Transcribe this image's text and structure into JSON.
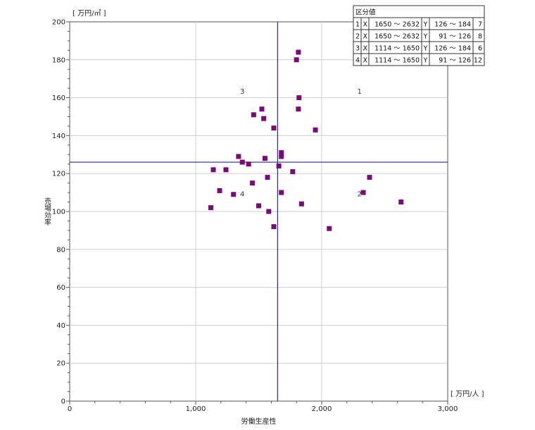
{
  "chart_data": {
    "type": "scatter",
    "xlabel": "労働生産性",
    "ylabel": "売場効率",
    "x_unit": "[ 万円/人 ]",
    "y_unit": "[ 万円/㎡ ]",
    "xlim": [
      0,
      3000
    ],
    "ylim": [
      0,
      200
    ],
    "x_ticks": [
      0,
      1000,
      2000,
      3000
    ],
    "x_tick_labels": [
      "0",
      "1,000",
      "2,000",
      "3,000"
    ],
    "y_ticks": [
      0,
      20,
      40,
      60,
      80,
      100,
      120,
      140,
      160,
      180,
      200
    ],
    "y_tick_labels": [
      "0",
      "20",
      "40",
      "60",
      "80",
      "100",
      "120",
      "140",
      "160",
      "180",
      "200"
    ],
    "grid": "major",
    "divider": {
      "x": 1650,
      "y": 126
    },
    "marker_color": "#7a0a7a",
    "divider_color": "#2222cc",
    "points": [
      [
        1815,
        184
      ],
      [
        1800,
        180
      ],
      [
        1820,
        160
      ],
      [
        1525,
        154
      ],
      [
        1815,
        154
      ],
      [
        1460,
        151
      ],
      [
        1540,
        149
      ],
      [
        1620,
        144
      ],
      [
        1950,
        143
      ],
      [
        1680,
        131
      ],
      [
        1340,
        129
      ],
      [
        1680,
        129
      ],
      [
        1550,
        128
      ],
      [
        1370,
        126
      ],
      [
        1420,
        125
      ],
      [
        1660,
        124
      ],
      [
        1140,
        122
      ],
      [
        1240,
        122
      ],
      [
        1770,
        121
      ],
      [
        2380,
        118
      ],
      [
        1570,
        118
      ],
      [
        1450,
        115
      ],
      [
        1190,
        111
      ],
      [
        1680,
        110
      ],
      [
        2330,
        110
      ],
      [
        1300,
        109
      ],
      [
        2630,
        105
      ],
      [
        1840,
        104
      ],
      [
        1500,
        103
      ],
      [
        1120,
        102
      ],
      [
        1580,
        100
      ],
      [
        1620,
        92
      ],
      [
        2060,
        91
      ]
    ],
    "quadrant_labels": [
      {
        "text": "1",
        "x": 2300,
        "y": 162
      },
      {
        "text": "2",
        "x": 2300,
        "y": 108
      },
      {
        "text": "3",
        "x": 1370,
        "y": 162
      },
      {
        "text": "4",
        "x": 1370,
        "y": 108
      }
    ]
  },
  "legend": {
    "title": "区分値",
    "rows": [
      {
        "no": "1",
        "xl": "X",
        "xrange": "1650 〜 2632",
        "yl": "Y",
        "yrange": "126 〜 184",
        "count": "7"
      },
      {
        "no": "2",
        "xl": "X",
        "xrange": "1650 〜 2632",
        "yl": "Y",
        "yrange": "91 〜 126",
        "count": "8"
      },
      {
        "no": "3",
        "xl": "X",
        "xrange": "1114 〜 1650",
        "yl": "Y",
        "yrange": "126 〜 184",
        "count": "6"
      },
      {
        "no": "4",
        "xl": "X",
        "xrange": "1114 〜 1650",
        "yl": "Y",
        "yrange": "91 〜 126",
        "count": "12"
      }
    ]
  }
}
